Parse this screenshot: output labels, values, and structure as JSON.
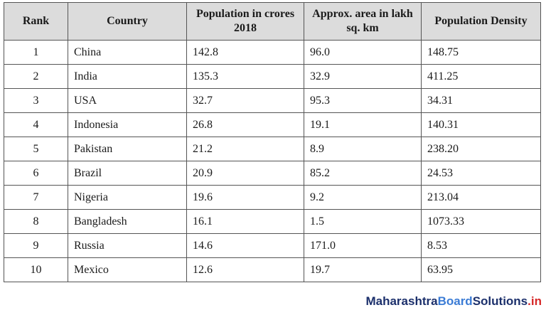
{
  "table": {
    "headers": {
      "rank": "Rank",
      "country": "Country",
      "population": "Population in crores 2018",
      "area": "Approx. area in lakh sq. km",
      "density": "Population Density"
    },
    "rows": [
      {
        "rank": "1",
        "country": "China",
        "population": "142.8",
        "area": "96.0",
        "density": "148.75"
      },
      {
        "rank": "2",
        "country": "India",
        "population": "135.3",
        "area": "32.9",
        "density": "411.25"
      },
      {
        "rank": "3",
        "country": "USA",
        "population": "32.7",
        "area": "95.3",
        "density": "34.31"
      },
      {
        "rank": "4",
        "country": "Indonesia",
        "population": "26.8",
        "area": "19.1",
        "density": "140.31"
      },
      {
        "rank": "5",
        "country": "Pakistan",
        "population": "21.2",
        "area": "8.9",
        "density": "238.20"
      },
      {
        "rank": "6",
        "country": "Brazil",
        "population": "20.9",
        "area": "85.2",
        "density": "24.53"
      },
      {
        "rank": "7",
        "country": "Nigeria",
        "population": "19.6",
        "area": "9.2",
        "density": "213.04"
      },
      {
        "rank": "8",
        "country": "Bangladesh",
        "population": "16.1",
        "area": "1.5",
        "density": "1073.33"
      },
      {
        "rank": "9",
        "country": "Russia",
        "population": "14.6",
        "area": "171.0",
        "density": "8.53"
      },
      {
        "rank": "10",
        "country": "Mexico",
        "population": "12.6",
        "area": "19.7",
        "density": "63.95"
      }
    ]
  },
  "watermark": {
    "part1": "Maharashtra",
    "part2": "Board",
    "part3": "Solutions",
    "part4": ".in"
  }
}
